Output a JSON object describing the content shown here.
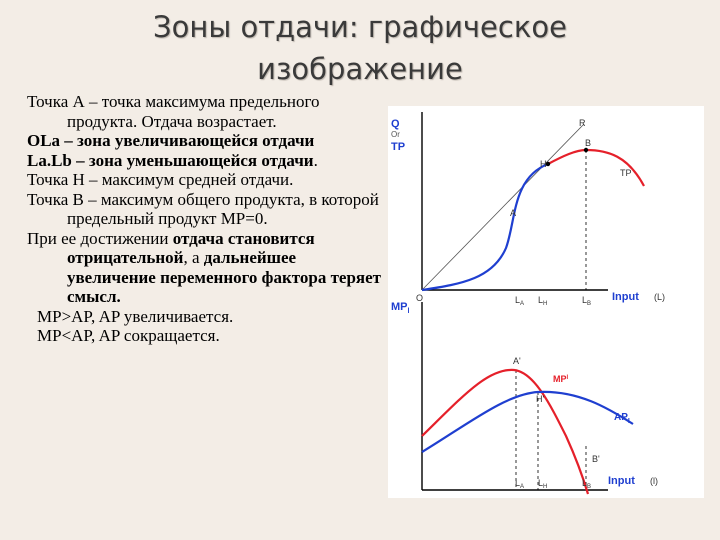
{
  "slide": {
    "title_line1": "Зоны отдачи: графическое",
    "title_line2": "изображение"
  },
  "text": {
    "p1": "Точка А – точка максимума предельного продукта. Отдача возрастает.",
    "p2_bold": "OLa – зона увеличивающейся отдачи",
    "p3_bold": "La.Lb – зона уменьшающейся отдачи",
    "p3_tail": ".",
    "p4": "Точка Н – максимум средней отдачи.",
    "p5": "Точка В – максимум общего продукта, в которой предельный продукт МР=0.",
    "p6_a": "При ее достижении ",
    "p6_bold1": "отдача становится отрицательной",
    "p6_b": ", а ",
    "p6_bold2": "дальнейшее увеличение переменного фактора теряет смысл.",
    "p7": "MP>AP, AP увеличивается.",
    "p8": "MP<AP, AP сокращается."
  },
  "graph_top": {
    "y_label_q": "Q",
    "y_label_or": "Or",
    "y_label_tp": "TP",
    "ray_label": "R",
    "point_a": "A",
    "point_h": "H",
    "point_b": "B",
    "curve_label": "TP",
    "origin": "O",
    "x_la": "L",
    "x_la_sub": "A",
    "x_lh": "L",
    "x_lh_sub": "H",
    "x_lb": "L",
    "x_lb_sub": "B",
    "x_axis_input": "Input",
    "x_axis_unit": "(L)",
    "tp_color": "#1f3fd0",
    "tp_hilite_color": "#e5202a"
  },
  "graph_bottom": {
    "y_label_mp": "MP",
    "y_label_mp_sub": "l",
    "point_a2": "A'",
    "mp_label": "MP",
    "mp_label_sup": "l",
    "point_h2": "H'",
    "ap_label": "AP",
    "ap_label_sub": "L",
    "point_b2": "B'",
    "x_la": "L",
    "x_la_sub": "A",
    "x_lh": "L",
    "x_lh_sub": "H",
    "x_lb": "L",
    "x_lb_sub": "B",
    "x_axis_input": "Input",
    "x_axis_unit": "(l)",
    "mp_color": "#e5202a",
    "ap_color": "#1f3fd0"
  }
}
